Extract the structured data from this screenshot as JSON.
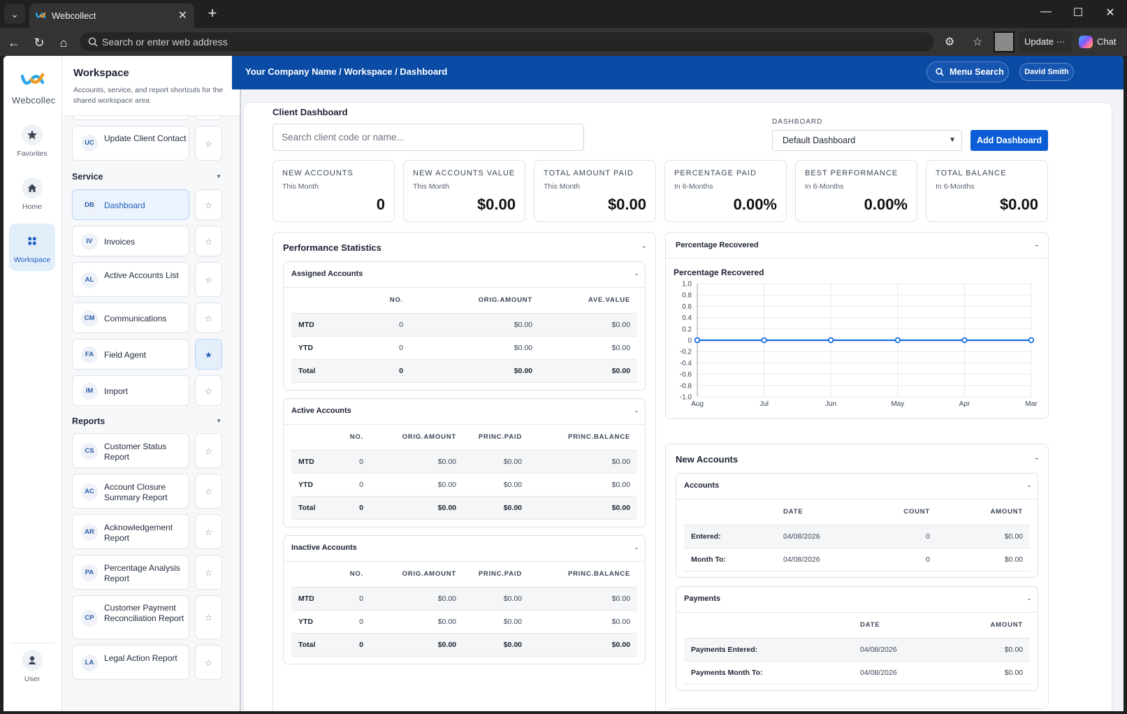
{
  "browser": {
    "tab_title": "Webcollect",
    "address_placeholder": "Search or enter web address",
    "update_label": "Update",
    "update_more": "···",
    "chat_label": "Chat"
  },
  "rail": {
    "brand": "Webcollec",
    "items": [
      {
        "label": "Favorites",
        "icon": "star-icon"
      },
      {
        "label": "Home",
        "icon": "home-icon"
      },
      {
        "label": "Workspace",
        "icon": "grid-icon"
      },
      {
        "label": "User",
        "icon": "user-icon"
      }
    ]
  },
  "menu": {
    "title": "Workspace",
    "subtitle": "Accounts, service, and report shortcuts for the shared workspace area",
    "top_items": [
      {
        "code": "UC",
        "label": "Update Client Contact",
        "starred": false
      }
    ],
    "service_label": "Service",
    "service_items": [
      {
        "code": "DB",
        "label": "Dashboard",
        "starred": false,
        "active": true
      },
      {
        "code": "IV",
        "label": "Invoices",
        "starred": false
      },
      {
        "code": "AL",
        "label": "Active Accounts List",
        "starred": false
      },
      {
        "code": "CM",
        "label": "Communications",
        "starred": false
      },
      {
        "code": "FA",
        "label": "Field Agent",
        "starred": true
      },
      {
        "code": "IM",
        "label": "Import",
        "starred": false
      }
    ],
    "reports_label": "Reports",
    "report_items": [
      {
        "code": "CS",
        "label": "Customer Status Report",
        "starred": false
      },
      {
        "code": "AC",
        "label": "Account Closure Summary Report",
        "starred": false
      },
      {
        "code": "AR",
        "label": "Acknowledgement Report",
        "starred": false
      },
      {
        "code": "PA",
        "label": "Percentage Analysis Report",
        "starred": false
      },
      {
        "code": "CP",
        "label": "Customer Payment Reconciliation Report",
        "starred": false
      },
      {
        "code": "LA",
        "label": "Legal Action Report",
        "starred": false
      }
    ]
  },
  "topbar": {
    "breadcrumb": "Your Company Name / Workspace / Dashboard",
    "menu_search": "Menu Search",
    "user": "David Smith"
  },
  "dashboard": {
    "title": "Client Dashboard",
    "search_placeholder": "Search client code or name...",
    "dashboard_label": "DASHBOARD",
    "dashboard_selected": "Default Dashboard",
    "add_dashboard": "Add Dashboard",
    "kpis": [
      {
        "title": "NEW ACCOUNTS",
        "sub": "This Month",
        "value": "0"
      },
      {
        "title": "NEW ACCOUNTS VALUE",
        "sub": "This Month",
        "value": "$0.00"
      },
      {
        "title": "TOTAL AMOUNT PAID",
        "sub": "This Month",
        "value": "$0.00"
      },
      {
        "title": "PERCENTAGE PAID",
        "sub": "In 6-Months",
        "value": "0.00%"
      },
      {
        "title": "BEST PERFORMANCE",
        "sub": "In 6-Months",
        "value": "0.00%"
      },
      {
        "title": "TOTAL BALANCE",
        "sub": "In 6-Months",
        "value": "$0.00"
      }
    ]
  },
  "performance": {
    "title": "Performance Statistics",
    "min": "-",
    "assigned": {
      "title": "Assigned Accounts",
      "headers": [
        "",
        "NO.",
        "ORIG.AMOUNT",
        "AVE.VALUE"
      ],
      "rows": [
        [
          "MTD",
          "0",
          "$0.00",
          "$0.00"
        ],
        [
          "YTD",
          "0",
          "$0.00",
          "$0.00"
        ],
        [
          "Total",
          "0",
          "$0.00",
          "$0.00"
        ]
      ]
    },
    "active": {
      "title": "Active Accounts",
      "headers": [
        "",
        "NO.",
        "ORIG.AMOUNT",
        "PRINC.PAID",
        "PRINC.BALANCE"
      ],
      "rows": [
        [
          "MTD",
          "0",
          "$0.00",
          "$0.00",
          "$0.00"
        ],
        [
          "YTD",
          "0",
          "$0.00",
          "$0.00",
          "$0.00"
        ],
        [
          "Total",
          "0",
          "$0.00",
          "$0.00",
          "$0.00"
        ]
      ]
    },
    "inactive": {
      "title": "Inactive Accounts",
      "headers": [
        "",
        "NO.",
        "ORIG.AMOUNT",
        "PRINC.PAID",
        "PRINC.BALANCE"
      ],
      "rows": [
        [
          "MTD",
          "0",
          "$0.00",
          "$0.00",
          "$0.00"
        ],
        [
          "YTD",
          "0",
          "$0.00",
          "$0.00",
          "$0.00"
        ],
        [
          "Total",
          "0",
          "$0.00",
          "$0.00",
          "$0.00"
        ]
      ]
    }
  },
  "recovered_panel": {
    "title": "Percentage Recovered",
    "min": "-"
  },
  "chart_data": {
    "type": "line",
    "title": "Percentage Recovered",
    "categories": [
      "Aug",
      "Jul",
      "Jun",
      "May",
      "Apr",
      "Mar"
    ],
    "series": [
      {
        "values": [
          0,
          0,
          0,
          0,
          0,
          0
        ],
        "color": "#1a6fe0"
      }
    ],
    "ylim": [
      -1.0,
      1.0
    ],
    "yticks": [
      "1.0",
      "0.8",
      "0.6",
      "0.4",
      "0.2",
      "0",
      "-0.2",
      "-0.4",
      "-0.6",
      "-0.8",
      "-1.0"
    ],
    "grid": true
  },
  "new_accounts": {
    "title": "New Accounts",
    "min": "-",
    "accounts": {
      "title": "Accounts",
      "headers": [
        "",
        "DATE",
        "COUNT",
        "AMOUNT"
      ],
      "rows": [
        [
          "Entered:",
          "04/08/2026",
          "0",
          "$0.00"
        ],
        [
          "Month To:",
          "04/08/2026",
          "0",
          "$0.00"
        ]
      ]
    },
    "payments": {
      "title": "Payments",
      "headers": [
        "",
        "DATE",
        "AMOUNT"
      ],
      "rows": [
        [
          "Payments Entered:",
          "04/08/2026",
          "$0.00"
        ],
        [
          "Payments Month To:",
          "04/08/2026",
          "$0.00"
        ]
      ]
    }
  },
  "colors": {
    "brand_blue": "#0a4ba5",
    "accent": "#0d5ed6",
    "line": "#1a6fe0"
  }
}
